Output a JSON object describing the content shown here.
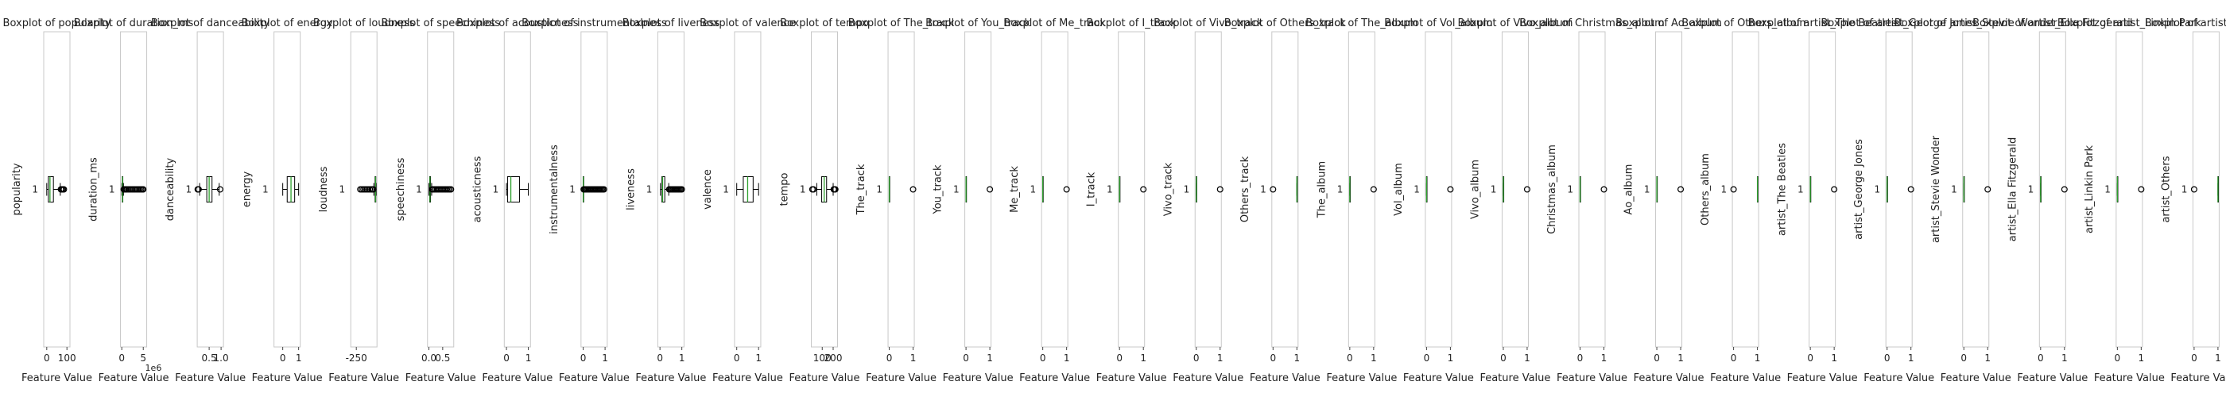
{
  "figure": {
    "xlabel": "Feature Value"
  },
  "chart_data": [
    {
      "type": "boxplot",
      "title": "Boxplot of popularity",
      "ylabel": "popularity",
      "category": "1",
      "xticks": [
        "0",
        "100"
      ],
      "xlim": [
        -15,
        115
      ],
      "stats": {
        "q1": 8,
        "median": 16,
        "q3": 33,
        "whislo": 0,
        "whishi": 67
      },
      "outliers": [
        70,
        75,
        80,
        85
      ]
    },
    {
      "type": "boxplot",
      "title": "Boxplot of duration_ms",
      "ylabel": "duration_ms",
      "category": "1",
      "xticks": [
        "0",
        "5"
      ],
      "xlim": [
        -0.3,
        5.8
      ],
      "xscale": "1e6",
      "stats": {
        "q1": 0.12,
        "median": 0.18,
        "q3": 0.25,
        "whislo": 0.02,
        "whishi": 0.4
      },
      "outliers": [
        0.45,
        0.6,
        0.8,
        1.0,
        1.2,
        1.5,
        1.8,
        2.1,
        2.4,
        2.7,
        3.0,
        3.3,
        3.6,
        3.9,
        4.2,
        4.5,
        4.8,
        5.0
      ]
    },
    {
      "type": "boxplot",
      "title": "Boxplot of danceability",
      "ylabel": "danceability",
      "category": "1",
      "xticks": [
        "0.5",
        "1.0"
      ],
      "xlim": [
        0.0,
        1.1
      ],
      "stats": {
        "q1": 0.4,
        "median": 0.5,
        "q3": 0.62,
        "whislo": 0.1,
        "whishi": 0.92
      },
      "outliers": [
        0.02,
        0.04,
        0.06,
        0.96
      ]
    },
    {
      "type": "boxplot",
      "title": "Boxplot of energy",
      "ylabel": "energy",
      "category": "1",
      "xticks": [
        "0",
        "1"
      ],
      "xlim": [
        -0.55,
        1.1
      ],
      "stats": {
        "q1": 0.28,
        "median": 0.52,
        "q3": 0.75,
        "whislo": 0.0,
        "whishi": 1.0
      },
      "outliers": []
    },
    {
      "type": "boxplot",
      "title": "Boxplot of loudness",
      "ylabel": "loudness",
      "category": "1",
      "xticks": [
        "-250"
      ],
      "xlim": [
        -320,
        10
      ],
      "stats": {
        "q1": -14,
        "median": -8,
        "q3": -5,
        "whislo": -30,
        "whishi": 0
      },
      "outliers": [
        -35,
        -45,
        -60,
        -80,
        -100,
        -120,
        -140,
        -160,
        -180,
        -200
      ]
    },
    {
      "type": "boxplot",
      "title": "Boxplot of speechiness",
      "ylabel": "speechiness",
      "category": "1",
      "xticks": [
        "0.0",
        "0.5"
      ],
      "xlim": [
        -0.05,
        0.9
      ],
      "stats": {
        "q1": 0.03,
        "median": 0.04,
        "q3": 0.06,
        "whislo": 0.0,
        "whishi": 0.1
      },
      "outliers": [
        0.12,
        0.15,
        0.2,
        0.25,
        0.3,
        0.35,
        0.4,
        0.45,
        0.5,
        0.55,
        0.6,
        0.65,
        0.7,
        0.75,
        0.8
      ]
    },
    {
      "type": "boxplot",
      "title": "Boxplot of acousticness",
      "ylabel": "acousticness",
      "category": "1",
      "xticks": [
        "0",
        "1"
      ],
      "xlim": [
        -0.1,
        1.1
      ],
      "stats": {
        "q1": 0.05,
        "median": 0.2,
        "q3": 0.6,
        "whislo": 0.0,
        "whishi": 1.0
      },
      "outliers": []
    },
    {
      "type": "boxplot",
      "title": "Boxplot of instrumentalness",
      "ylabel": "instrumentalness",
      "category": "1",
      "xticks": [
        "0",
        "1"
      ],
      "xlim": [
        -0.1,
        1.1
      ],
      "stats": {
        "q1": 0.0,
        "median": 0.0,
        "q3": 0.005,
        "whislo": 0.0,
        "whishi": 0.012
      },
      "outliers": [
        0.02,
        0.06,
        0.1,
        0.15,
        0.2,
        0.25,
        0.3,
        0.35,
        0.4,
        0.45,
        0.5,
        0.55,
        0.6,
        0.65,
        0.7,
        0.75,
        0.8,
        0.85,
        0.9,
        0.95
      ]
    },
    {
      "type": "boxplot",
      "title": "Boxplot of liveness",
      "ylabel": "liveness",
      "category": "1",
      "xticks": [
        "0",
        "1"
      ],
      "xlim": [
        -0.1,
        1.1
      ],
      "stats": {
        "q1": 0.09,
        "median": 0.12,
        "q3": 0.22,
        "whislo": 0.02,
        "whishi": 0.4
      },
      "outliers": [
        0.42,
        0.45,
        0.5,
        0.55,
        0.6,
        0.65,
        0.7,
        0.75,
        0.8,
        0.85,
        0.9,
        0.95,
        1.0
      ]
    },
    {
      "type": "boxplot",
      "title": "Boxplot of valence",
      "ylabel": "valence",
      "category": "1",
      "xticks": [
        "0",
        "1"
      ],
      "xlim": [
        -0.1,
        1.1
      ],
      "stats": {
        "q1": 0.3,
        "median": 0.5,
        "q3": 0.75,
        "whislo": 0.0,
        "whishi": 1.0
      },
      "outliers": []
    },
    {
      "type": "boxplot",
      "title": "Boxplot of tempo",
      "ylabel": "tempo",
      "category": "1",
      "xticks": [
        "100",
        "200"
      ],
      "xlim": [
        0,
        240
      ],
      "stats": {
        "q1": 95,
        "median": 118,
        "q3": 140,
        "whislo": 50,
        "whishi": 200
      },
      "outliers": [
        10,
        20,
        205,
        210,
        215,
        220
      ]
    },
    {
      "type": "boxplot",
      "title": "Boxplot of The_track",
      "ylabel": "The_track",
      "category": "1",
      "xticks": [
        "0",
        "1"
      ],
      "xlim": [
        -0.05,
        1.05
      ],
      "stats": {
        "q1": 0,
        "median": 0,
        "q3": 0,
        "whislo": 0,
        "whishi": 0
      },
      "outliers": [
        1
      ]
    },
    {
      "type": "boxplot",
      "title": "Boxplot of You_track",
      "ylabel": "You_track",
      "category": "1",
      "xticks": [
        "0",
        "1"
      ],
      "xlim": [
        -0.05,
        1.05
      ],
      "stats": {
        "q1": 0,
        "median": 0,
        "q3": 0,
        "whislo": 0,
        "whishi": 0
      },
      "outliers": [
        1
      ]
    },
    {
      "type": "boxplot",
      "title": "Boxplot of Me_track",
      "ylabel": "Me_track",
      "category": "1",
      "xticks": [
        "0",
        "1"
      ],
      "xlim": [
        -0.05,
        1.05
      ],
      "stats": {
        "q1": 0,
        "median": 0,
        "q3": 0,
        "whislo": 0,
        "whishi": 0
      },
      "outliers": [
        1
      ]
    },
    {
      "type": "boxplot",
      "title": "Boxplot of I_track",
      "ylabel": "I_track",
      "category": "1",
      "xticks": [
        "0",
        "1"
      ],
      "xlim": [
        -0.05,
        1.05
      ],
      "stats": {
        "q1": 0,
        "median": 0,
        "q3": 0,
        "whislo": 0,
        "whishi": 0
      },
      "outliers": [
        1
      ]
    },
    {
      "type": "boxplot",
      "title": "Boxplot of Vivo_track",
      "ylabel": "Vivo_track",
      "category": "1",
      "xticks": [
        "0",
        "1"
      ],
      "xlim": [
        -0.05,
        1.05
      ],
      "stats": {
        "q1": 0,
        "median": 0,
        "q3": 0,
        "whislo": 0,
        "whishi": 0
      },
      "outliers": [
        1
      ]
    },
    {
      "type": "boxplot",
      "title": "Boxplot of Others_track",
      "ylabel": "Others_track",
      "category": "1",
      "xticks": [
        "0",
        "1"
      ],
      "xlim": [
        -0.05,
        1.05
      ],
      "stats": {
        "q1": 1,
        "median": 1,
        "q3": 1,
        "whislo": 1,
        "whishi": 1
      },
      "outliers": [
        0
      ]
    },
    {
      "type": "boxplot",
      "title": "Boxplot of The_album",
      "ylabel": "The_album",
      "category": "1",
      "xticks": [
        "0",
        "1"
      ],
      "xlim": [
        -0.05,
        1.05
      ],
      "stats": {
        "q1": 0,
        "median": 0,
        "q3": 0,
        "whislo": 0,
        "whishi": 0
      },
      "outliers": [
        1
      ]
    },
    {
      "type": "boxplot",
      "title": "Boxplot of Vol_album",
      "ylabel": "Vol_album",
      "category": "1",
      "xticks": [
        "0",
        "1"
      ],
      "xlim": [
        -0.05,
        1.05
      ],
      "stats": {
        "q1": 0,
        "median": 0,
        "q3": 0,
        "whislo": 0,
        "whishi": 0
      },
      "outliers": [
        1
      ]
    },
    {
      "type": "boxplot",
      "title": "Boxplot of Vivo_album",
      "ylabel": "Vivo_album",
      "category": "1",
      "xticks": [
        "0",
        "1"
      ],
      "xlim": [
        -0.05,
        1.05
      ],
      "stats": {
        "q1": 0,
        "median": 0,
        "q3": 0,
        "whislo": 0,
        "whishi": 0
      },
      "outliers": [
        1
      ]
    },
    {
      "type": "boxplot",
      "title": "Boxplot of Christmas_album",
      "ylabel": "Christmas_album",
      "category": "1",
      "xticks": [
        "0",
        "1"
      ],
      "xlim": [
        -0.05,
        1.05
      ],
      "stats": {
        "q1": 0,
        "median": 0,
        "q3": 0,
        "whislo": 0,
        "whishi": 0
      },
      "outliers": [
        1
      ]
    },
    {
      "type": "boxplot",
      "title": "Boxplot of Ao_album",
      "ylabel": "Ao_album",
      "category": "1",
      "xticks": [
        "0",
        "1"
      ],
      "xlim": [
        -0.05,
        1.05
      ],
      "stats": {
        "q1": 0,
        "median": 0,
        "q3": 0,
        "whislo": 0,
        "whishi": 0
      },
      "outliers": [
        1
      ]
    },
    {
      "type": "boxplot",
      "title": "Boxplot of Others_album",
      "ylabel": "Others_album",
      "category": "1",
      "xticks": [
        "0",
        "1"
      ],
      "xlim": [
        -0.05,
        1.05
      ],
      "stats": {
        "q1": 1,
        "median": 1,
        "q3": 1,
        "whislo": 1,
        "whishi": 1
      },
      "outliers": [
        0
      ]
    },
    {
      "type": "boxplot",
      "title": "Boxplot of artist_The Beatles",
      "ylabel": "artist_The Beatles",
      "category": "1",
      "xticks": [
        "0",
        "1"
      ],
      "xlim": [
        -0.05,
        1.05
      ],
      "stats": {
        "q1": 0,
        "median": 0,
        "q3": 0,
        "whislo": 0,
        "whishi": 0
      },
      "outliers": [
        1
      ]
    },
    {
      "type": "boxplot",
      "title": "Boxplot of artist_George Jones",
      "ylabel": "artist_George Jones",
      "category": "1",
      "xticks": [
        "0",
        "1"
      ],
      "xlim": [
        -0.05,
        1.05
      ],
      "stats": {
        "q1": 0,
        "median": 0,
        "q3": 0,
        "whislo": 0,
        "whishi": 0
      },
      "outliers": [
        1
      ]
    },
    {
      "type": "boxplot",
      "title": "Boxplot of artist_Stevie Wonder",
      "ylabel": "artist_Stevie Wonder",
      "category": "1",
      "xticks": [
        "0",
        "1"
      ],
      "xlim": [
        -0.05,
        1.05
      ],
      "stats": {
        "q1": 0,
        "median": 0,
        "q3": 0,
        "whislo": 0,
        "whishi": 0
      },
      "outliers": [
        1
      ]
    },
    {
      "type": "boxplot",
      "title": "Boxplot of artist_Ella Fitzgerald",
      "ylabel": "artist_Ella Fitzgerald",
      "category": "1",
      "xticks": [
        "0",
        "1"
      ],
      "xlim": [
        -0.05,
        1.05
      ],
      "stats": {
        "q1": 0,
        "median": 0,
        "q3": 0,
        "whislo": 0,
        "whishi": 0
      },
      "outliers": [
        1
      ]
    },
    {
      "type": "boxplot",
      "title": "Boxplot of artist_Linkin Park",
      "ylabel": "artist_Linkin Park",
      "category": "1",
      "xticks": [
        "0",
        "1"
      ],
      "xlim": [
        -0.05,
        1.05
      ],
      "stats": {
        "q1": 0,
        "median": 0,
        "q3": 0,
        "whislo": 0,
        "whishi": 0
      },
      "outliers": [
        1
      ]
    },
    {
      "type": "boxplot",
      "title": "Boxplot of artist_Others",
      "ylabel": "artist_Others",
      "category": "1",
      "xticks": [
        "0",
        "1"
      ],
      "xlim": [
        -0.05,
        1.05
      ],
      "stats": {
        "q1": 1,
        "median": 1,
        "q3": 1,
        "whislo": 1,
        "whishi": 1
      },
      "outliers": [
        0
      ]
    }
  ]
}
